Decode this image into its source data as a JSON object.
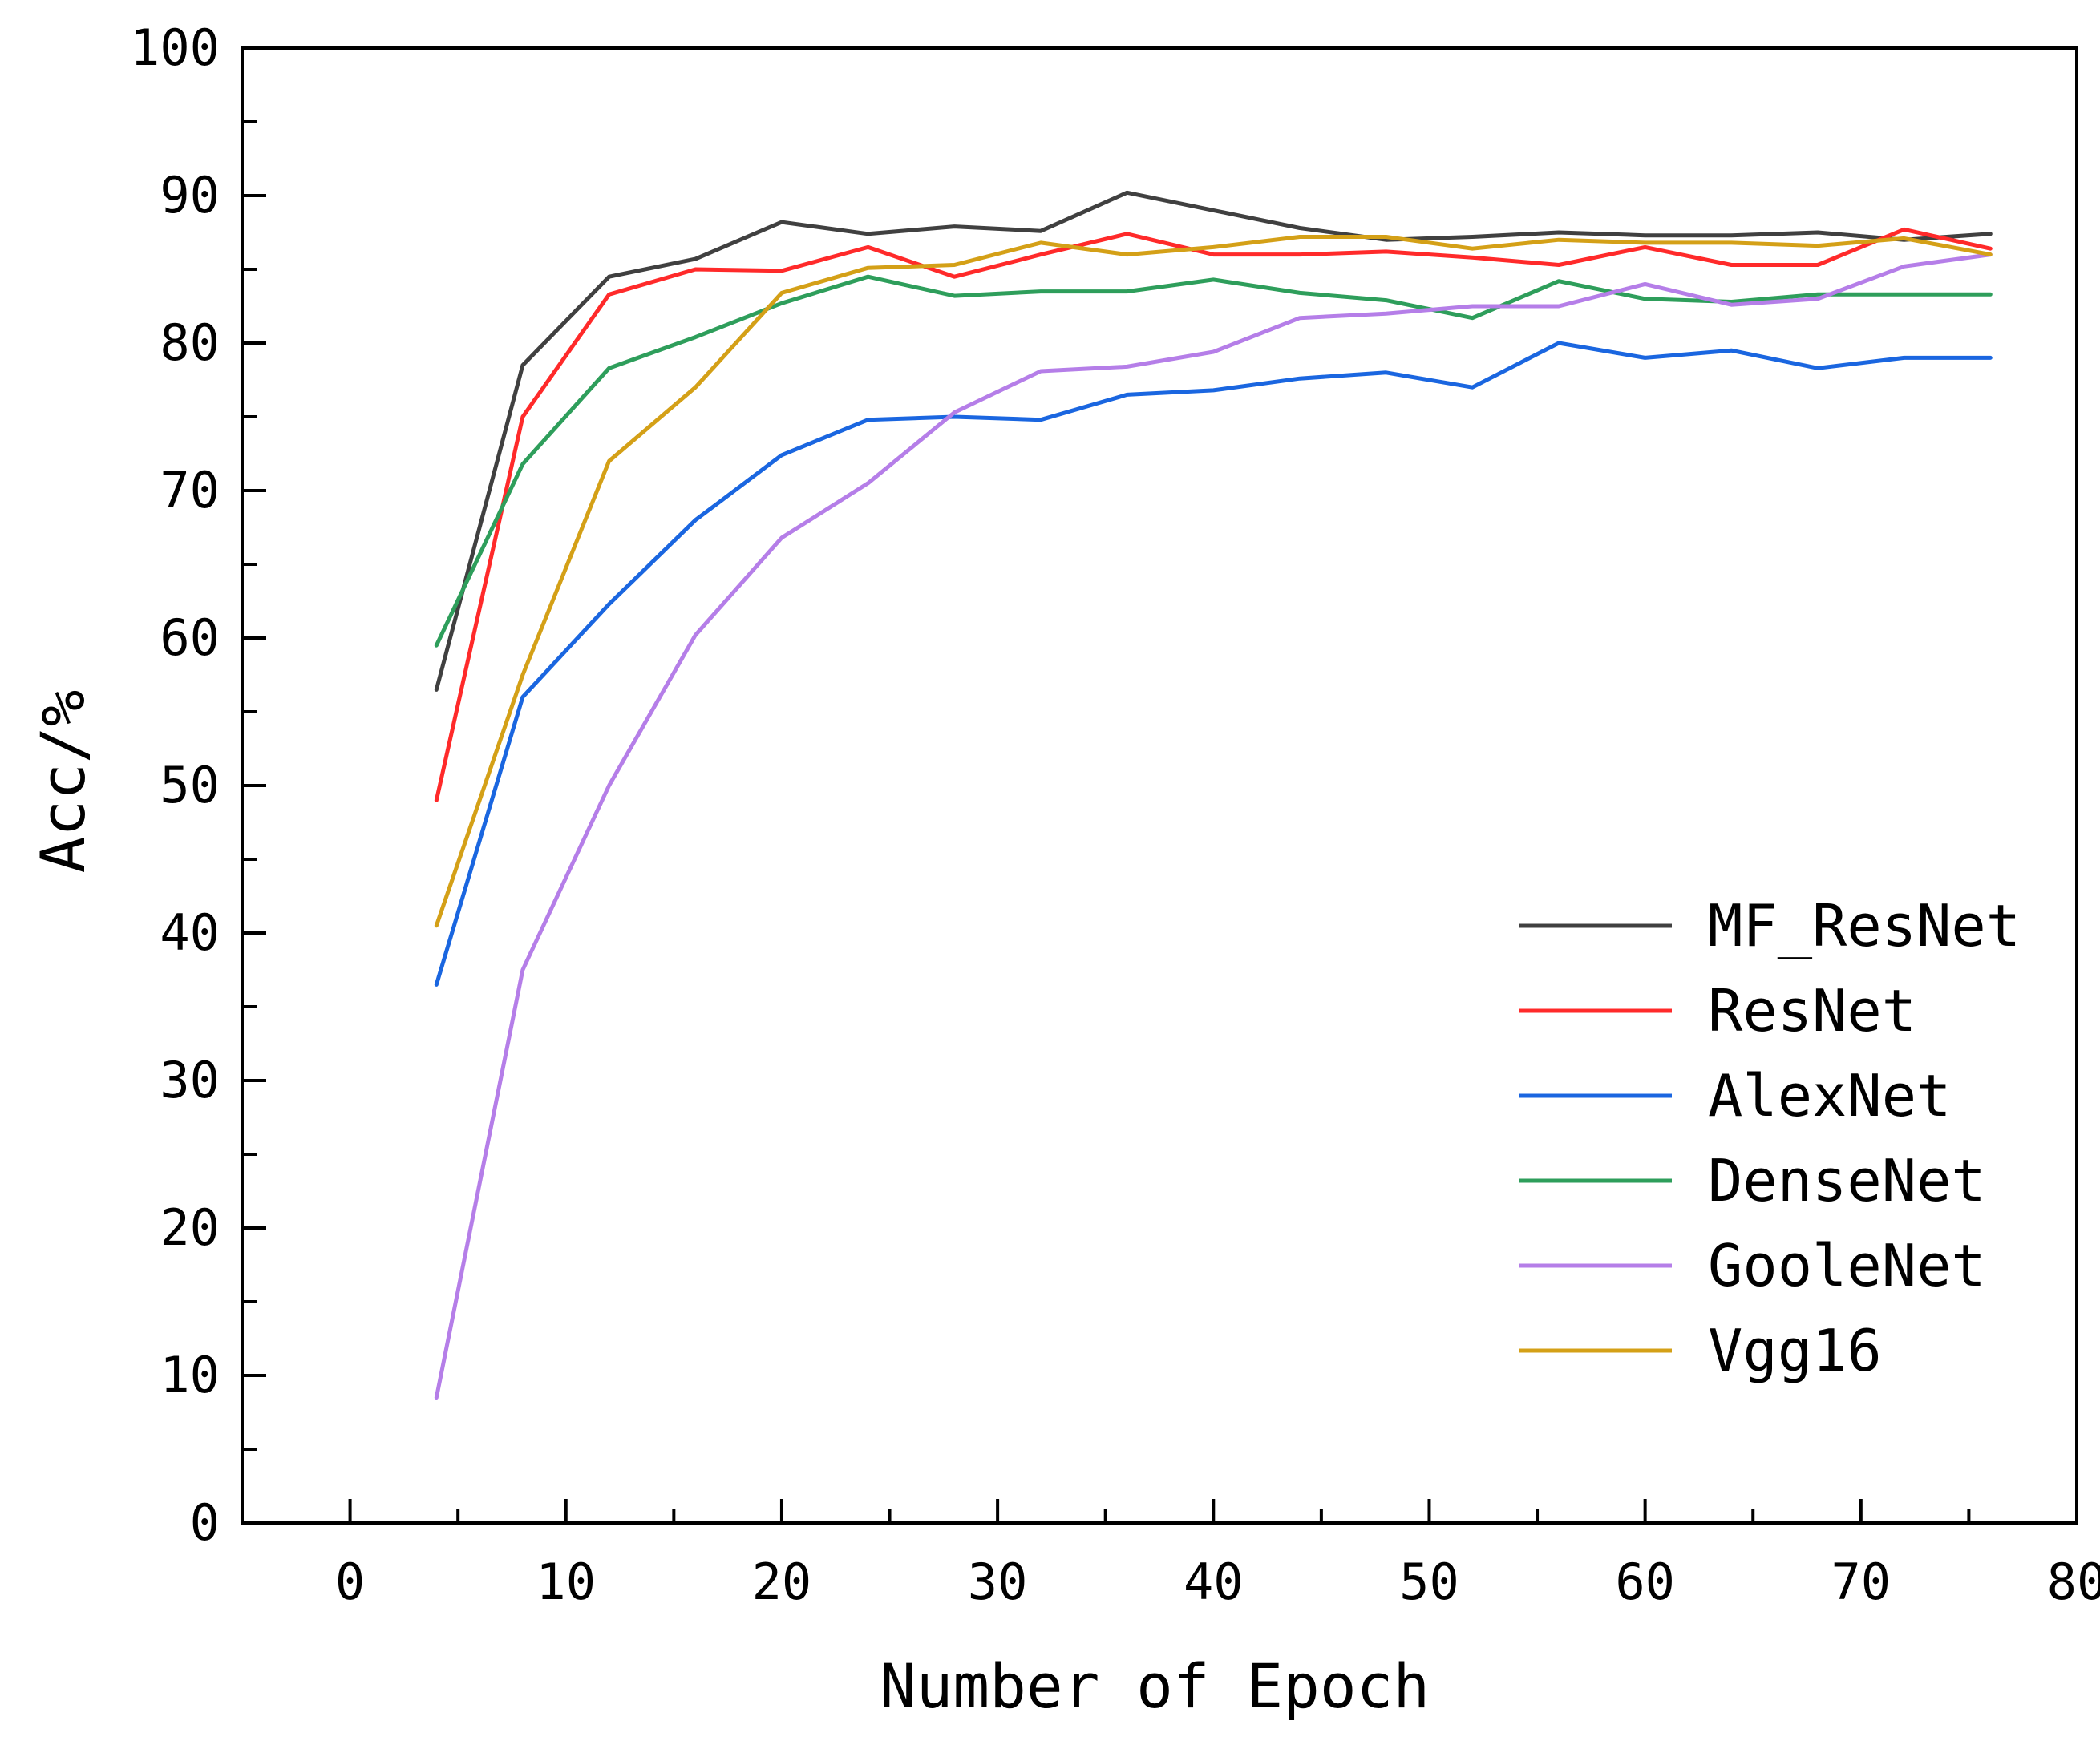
{
  "chart_data": {
    "type": "line",
    "title": "",
    "xlabel": "Number of Epoch",
    "ylabel": "Acc/%",
    "xlim": [
      -5,
      80
    ],
    "ylim": [
      0,
      100
    ],
    "x_ticks": [
      0,
      10,
      20,
      30,
      40,
      50,
      60,
      70,
      80
    ],
    "y_ticks": [
      0,
      10,
      20,
      30,
      40,
      50,
      60,
      70,
      80,
      90,
      100
    ],
    "grid": false,
    "legend_position": "bottom-right",
    "x": [
      4,
      8,
      12,
      16,
      20,
      24,
      28,
      32,
      36,
      40,
      44,
      48,
      52,
      56,
      60,
      64,
      68,
      72,
      76
    ],
    "series": [
      {
        "name": "MF_ResNet",
        "color": "#404040",
        "values": [
          56.5,
          78.5,
          84.5,
          85.7,
          88.2,
          87.4,
          87.9,
          87.6,
          90.2,
          89.0,
          87.8,
          87.0,
          87.2,
          87.5,
          87.3,
          87.3,
          87.5,
          87.0,
          87.4
        ]
      },
      {
        "name": "ResNet",
        "color": "#ff2a2a",
        "values": [
          49.0,
          75.0,
          83.3,
          85.0,
          84.9,
          86.5,
          84.5,
          86.0,
          87.4,
          86.0,
          86.0,
          86.2,
          85.8,
          85.3,
          86.5,
          85.3,
          85.3,
          87.7,
          86.4
        ]
      },
      {
        "name": "AlexNet",
        "color": "#1a66e0",
        "values": [
          36.5,
          56.0,
          62.3,
          68.0,
          72.4,
          74.8,
          75.0,
          74.8,
          76.5,
          76.8,
          77.6,
          78.0,
          77.0,
          80.0,
          79.0,
          79.5,
          78.3,
          79.0,
          79.0
        ]
      },
      {
        "name": "DenseNet",
        "color": "#2e9e5b",
        "values": [
          59.5,
          71.8,
          78.3,
          80.4,
          82.7,
          84.5,
          83.2,
          83.5,
          83.5,
          84.3,
          83.4,
          82.9,
          81.7,
          84.2,
          83.0,
          82.8,
          83.3,
          83.3,
          83.3
        ]
      },
      {
        "name": "GooleNet",
        "color": "#b57ee8",
        "values": [
          8.5,
          37.5,
          50.0,
          60.2,
          66.8,
          70.5,
          75.3,
          78.1,
          78.4,
          79.4,
          81.7,
          82.0,
          82.5,
          82.5,
          84.0,
          82.6,
          83.0,
          85.2,
          86.0
        ]
      },
      {
        "name": "Vgg16",
        "color": "#d4a017",
        "values": [
          40.5,
          57.5,
          72.0,
          77.0,
          83.4,
          85.1,
          85.3,
          86.8,
          86.0,
          86.5,
          87.2,
          87.2,
          86.4,
          87.0,
          86.8,
          86.8,
          86.6,
          87.1,
          86.0
        ]
      }
    ]
  }
}
